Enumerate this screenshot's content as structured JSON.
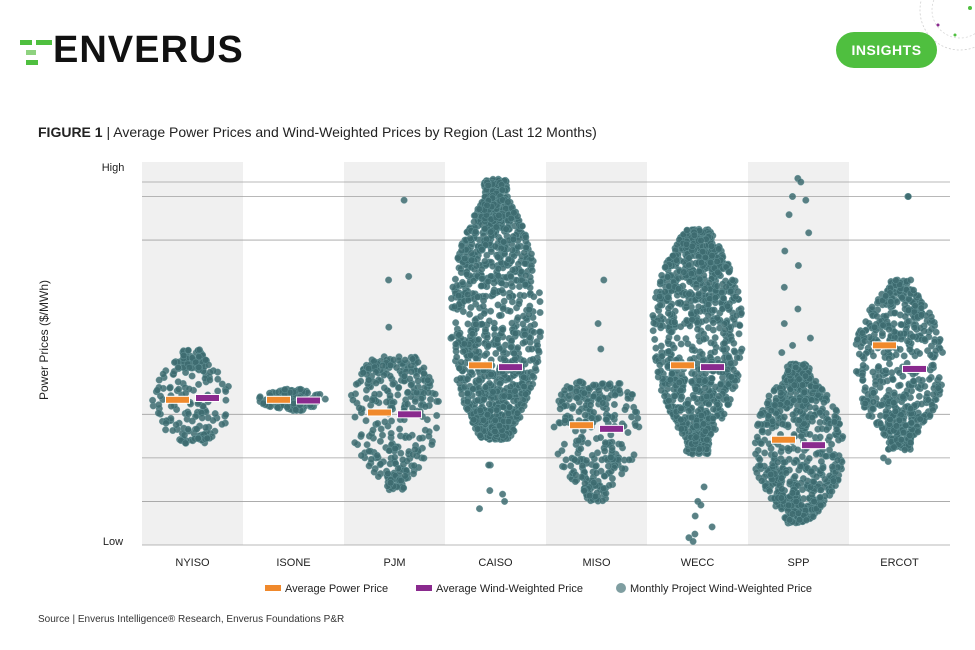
{
  "header": {
    "logo_text": "ENVERUS",
    "badge_label": "INSIGHTS"
  },
  "figure": {
    "label": "FIGURE 1",
    "separator": " | ",
    "title_rest": "Average Power Prices and Wind-Weighted Prices by Region (Last 12 Months)"
  },
  "footer": {
    "source": "Source | Enverus Intelligence® Research, Enverus Foundations P&R"
  },
  "colors": {
    "accent_green": "#4fbf3f",
    "avg_power": "#f0892c",
    "avg_wind": "#8a2a8e",
    "dots": "#3d6b70",
    "band": "#f0f0f0",
    "grid": "#a0a0a0"
  },
  "chart_data": {
    "type": "scatter",
    "subtype": "strip",
    "ylabel": "Power Prices ($/MWh)",
    "y_tick_labels": {
      "top": "High",
      "bottom": "Low"
    },
    "ylim": [
      0,
      100
    ],
    "gridlines": [
      0,
      12,
      24,
      36,
      84,
      96
    ],
    "categories": [
      "NYISO",
      "ISONE",
      "PJM",
      "CAISO",
      "MISO",
      "WECC",
      "SPP",
      "ERCOT"
    ],
    "legend": {
      "placement": "bottom",
      "entries": [
        "Average Power Price",
        "Average Wind-Weighted Price",
        "Monthly Project Wind-Weighted Price"
      ]
    },
    "series": [
      {
        "name": "Average Power Price",
        "values": [
          40,
          40,
          36.5,
          49.5,
          33,
          49.5,
          29,
          55
        ]
      },
      {
        "name": "Average Wind-Weighted Price",
        "values": [
          40.5,
          39.8,
          36,
          49,
          32,
          49,
          27.5,
          48.5
        ]
      }
    ],
    "distributions": [
      {
        "region": "NYISO",
        "min": 28,
        "max": 54,
        "center": 40,
        "count": 200,
        "outliers": []
      },
      {
        "region": "ISONE",
        "min": 37,
        "max": 43,
        "center": 40,
        "count": 120,
        "outliers": []
      },
      {
        "region": "PJM",
        "min": 15,
        "max": 52,
        "center": 36,
        "count": 320,
        "outliers": [
          95,
          74,
          73,
          60
        ]
      },
      {
        "region": "CAISO",
        "min": 29,
        "max": 101,
        "center": 62,
        "count": 1300,
        "outliers": [
          22,
          22,
          15,
          14,
          12,
          10
        ]
      },
      {
        "region": "MISO",
        "min": 12,
        "max": 45,
        "center": 32,
        "count": 300,
        "outliers": [
          73,
          61,
          54
        ]
      },
      {
        "region": "WECC",
        "min": 25,
        "max": 87,
        "center": 58,
        "count": 1100,
        "outliers": [
          16,
          12,
          11,
          8,
          5,
          3,
          2,
          1
        ]
      },
      {
        "region": "SPP",
        "min": 6,
        "max": 50,
        "center": 27,
        "count": 700,
        "outliers": [
          101,
          100,
          96,
          95,
          91,
          86,
          81,
          77,
          71,
          65,
          61,
          57,
          55,
          53
        ]
      },
      {
        "region": "ERCOT",
        "min": 26,
        "max": 73,
        "center": 50,
        "count": 650,
        "outliers": [
          96,
          96,
          24,
          23
        ]
      }
    ]
  }
}
